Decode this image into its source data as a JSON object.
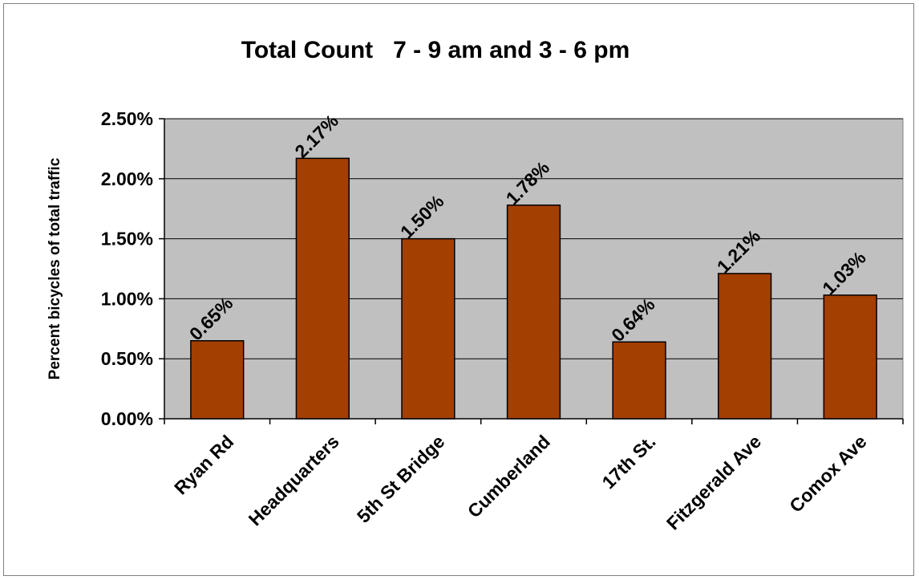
{
  "chart_data": {
    "type": "bar",
    "title": "Total Count   7 - 9 am and 3 - 6 pm",
    "xlabel": "",
    "ylabel": "Percent bicycles of total traffic",
    "categories": [
      "Ryan Rd",
      "Headquarters",
      "5th St Bridge",
      "Cumberland",
      "17th St.",
      "Fitzgerald Ave",
      "Comox Ave"
    ],
    "values": [
      0.65,
      2.17,
      1.5,
      1.78,
      0.64,
      1.21,
      1.03
    ],
    "value_labels": [
      "0.65%",
      "2.17%",
      "1.50%",
      "1.78%",
      "0.64%",
      "1.21%",
      "1.03%"
    ],
    "ylim": [
      0,
      2.5
    ],
    "yticks": [
      0,
      0.5,
      1.0,
      1.5,
      2.0,
      2.5
    ],
    "ytick_labels": [
      "0.00%",
      "0.50%",
      "1.00%",
      "1.50%",
      "2.00%",
      "2.50%"
    ],
    "grid": true,
    "legend": "none",
    "colors": {
      "bar": "#A33F00",
      "plot_background": "#C0C0C0",
      "grid": "#000000"
    }
  }
}
